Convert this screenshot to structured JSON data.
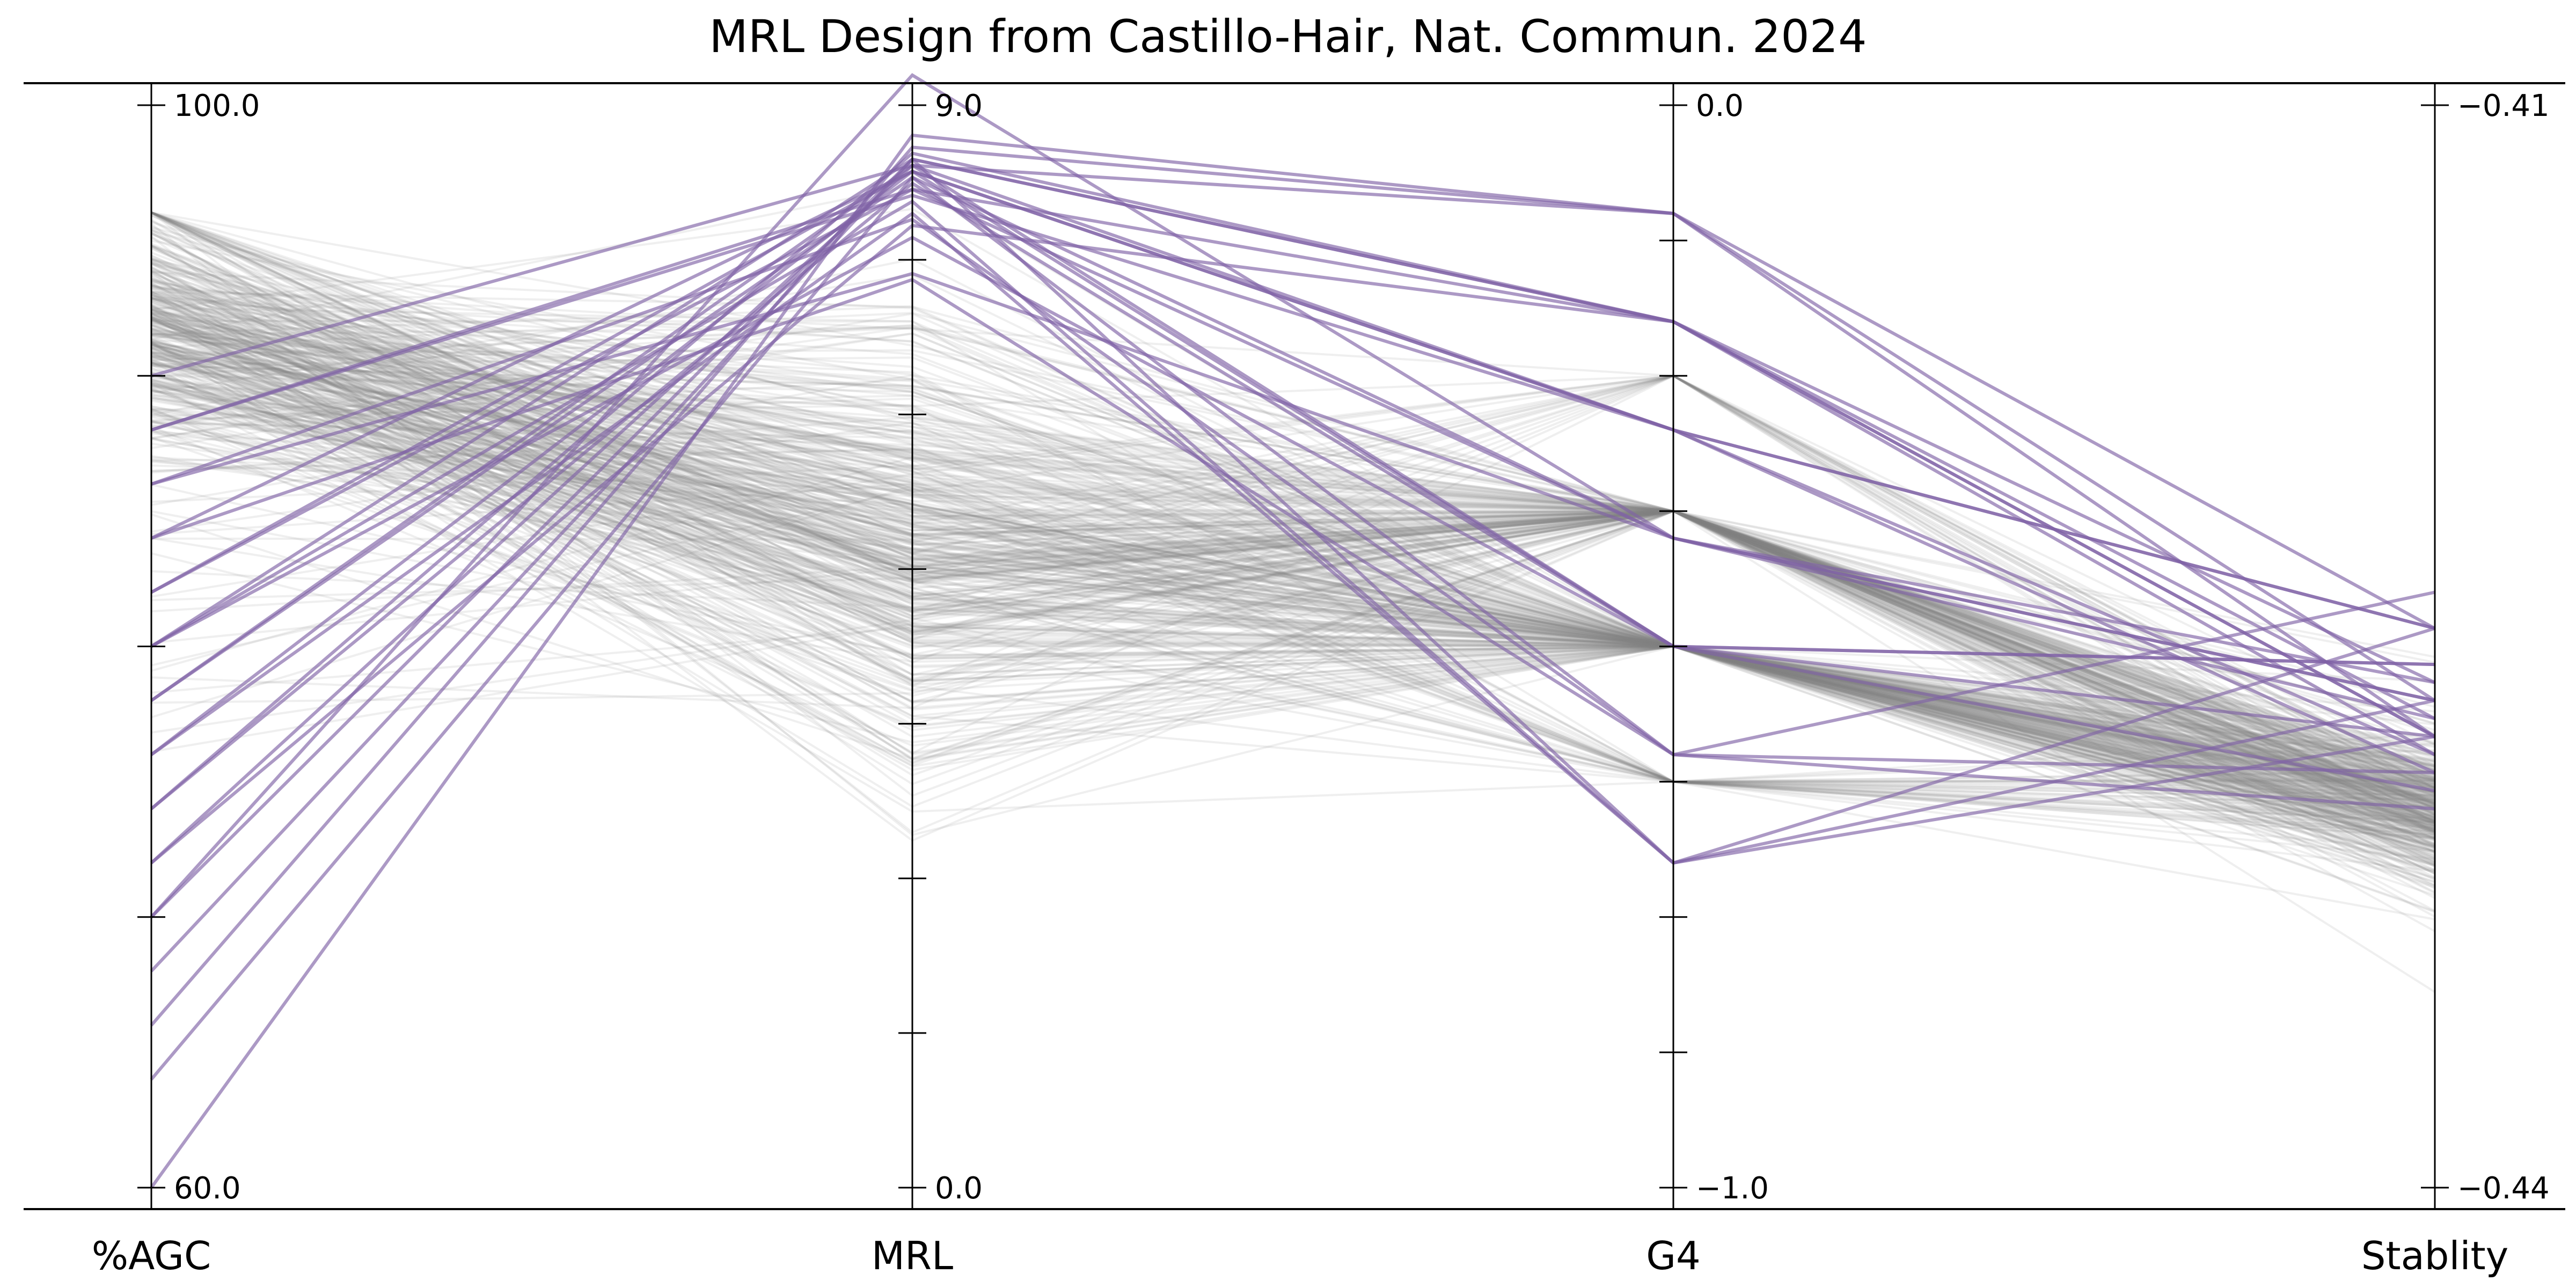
{
  "chart_data": {
    "type": "parallel-coordinates",
    "title": "MRL Design from Castillo-Hair, Nat. Commun. 2024",
    "axes": [
      {
        "name": "%AGC",
        "range": [
          60.0,
          100.0
        ],
        "min_label": "60.0",
        "max_label": "100.0",
        "ticks": 5
      },
      {
        "name": "MRL",
        "range": [
          0.0,
          9.0
        ],
        "min_label": "0.0",
        "max_label": "9.0",
        "ticks": 8
      },
      {
        "name": "G4",
        "range": [
          -1.0,
          0.0
        ],
        "min_label": "−1.0",
        "max_label": "0.0",
        "ticks": 9
      },
      {
        "name": "Stablity",
        "range": [
          -0.44,
          -0.41
        ],
        "min_label": "−0.44",
        "max_label": "−0.41",
        "ticks": 2
      }
    ],
    "colors": {
      "highlight": "#8062a6",
      "background": "#808080",
      "axis": "#000000"
    },
    "highlighted_series": [
      {
        "values": [
          60.0,
          8.75,
          -0.1,
          -0.4275
        ]
      },
      {
        "values": [
          66.0,
          8.65,
          -0.1,
          -0.4265
        ]
      },
      {
        "values": [
          68.0,
          8.55,
          -0.2,
          -0.426
        ]
      },
      {
        "values": [
          70.0,
          8.55,
          -0.2,
          -0.4275
        ]
      },
      {
        "values": [
          72.0,
          8.5,
          -0.3,
          -0.428
        ]
      },
      {
        "values": [
          74.0,
          8.6,
          -0.2,
          -0.427
        ]
      },
      {
        "values": [
          76.0,
          8.45,
          -0.3,
          -0.4285
        ]
      },
      {
        "values": [
          78.0,
          8.4,
          -0.4,
          -0.4265
        ]
      },
      {
        "values": [
          80.0,
          8.55,
          -0.7,
          -0.4245
        ]
      },
      {
        "values": [
          82.0,
          8.3,
          -0.4,
          -0.427
        ]
      },
      {
        "values": [
          84.0,
          8.45,
          -0.5,
          -0.4255
        ]
      },
      {
        "values": [
          86.0,
          8.05,
          -0.6,
          -0.4285
        ]
      },
      {
        "values": [
          88.0,
          8.25,
          -0.3,
          -0.4245
        ]
      },
      {
        "values": [
          90.0,
          8.5,
          -0.5,
          -0.4275
        ]
      },
      {
        "values": [
          76.0,
          8.1,
          -0.7,
          -0.4265
        ]
      },
      {
        "values": [
          80.0,
          8.2,
          -0.7,
          -0.4275
        ]
      },
      {
        "values": [
          84.0,
          7.55,
          -0.6,
          -0.4295
        ]
      },
      {
        "values": [
          72.0,
          8.0,
          -0.2,
          -0.4275
        ]
      },
      {
        "values": [
          78.0,
          8.5,
          -0.1,
          -0.4245
        ]
      },
      {
        "values": [
          88.0,
          8.3,
          -0.2,
          -0.428
        ]
      },
      {
        "values": [
          74.0,
          8.35,
          -0.5,
          -0.4255
        ]
      },
      {
        "values": [
          82.0,
          8.45,
          -0.3,
          -0.4245
        ]
      },
      {
        "values": [
          86.0,
          7.6,
          -0.4,
          -0.426
        ]
      },
      {
        "values": [
          70.0,
          9.25,
          -0.4,
          -0.4265
        ]
      },
      {
        "values": [
          64.0,
          8.4,
          -0.6,
          -0.4235
        ]
      },
      {
        "values": [
          80.0,
          7.9,
          -0.5,
          -0.429
        ]
      }
    ]
  }
}
